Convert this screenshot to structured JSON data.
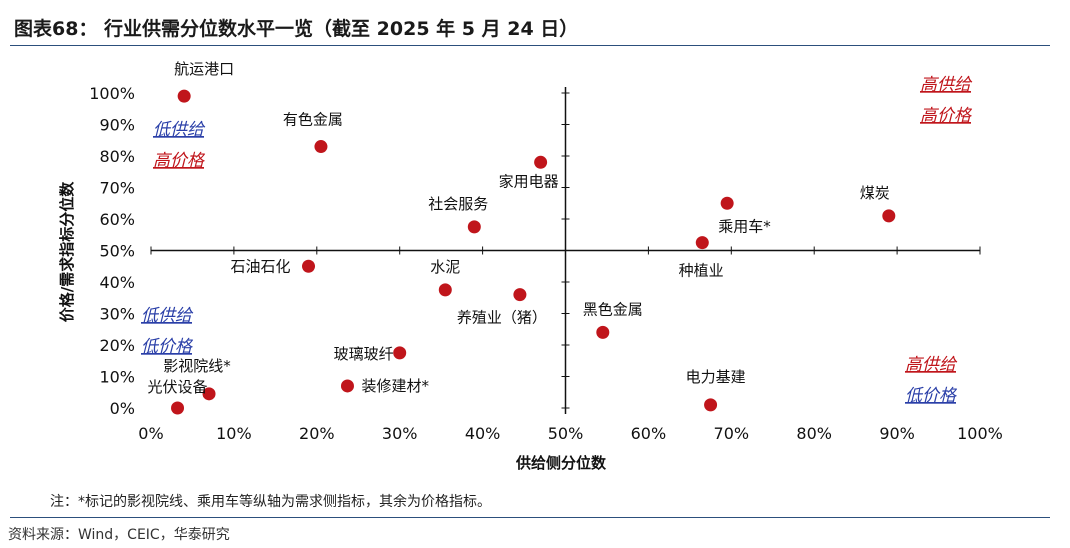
{
  "title": "图表68： 行业供需分位数水平一览（截至 2025 年 5 月 24 日）",
  "note": "注：*标记的影视院线、乘用车等纵轴为需求侧指标，其余为价格指标。",
  "source": "资料来源：Wind，CEIC，华泰研究",
  "colors": {
    "marker": "#c0151b",
    "red_text": "#c0151b",
    "blue_text": "#2a3fa8",
    "axis": "#111111",
    "rule": "#2c4f7c"
  },
  "quadrant_labels": [
    {
      "id": "top-left",
      "lines": [
        {
          "text": "低供给",
          "color": "blue"
        },
        {
          "text": "高价格",
          "color": "red"
        }
      ]
    },
    {
      "id": "top-right",
      "lines": [
        {
          "text": "高供给",
          "color": "red"
        },
        {
          "text": "高价格",
          "color": "red"
        }
      ]
    },
    {
      "id": "bottom-left",
      "lines": [
        {
          "text": "低供给",
          "color": "blue"
        },
        {
          "text": "低价格",
          "color": "blue"
        }
      ]
    },
    {
      "id": "bottom-right",
      "lines": [
        {
          "text": "高供给",
          "color": "red"
        },
        {
          "text": "低价格",
          "color": "blue"
        }
      ]
    }
  ],
  "chart_data": {
    "type": "scatter",
    "xlabel": "供给侧分位数",
    "ylabel": "价格/需求指标分位数",
    "xlim": [
      0,
      1
    ],
    "ylim": [
      0,
      1
    ],
    "x_ticks": [
      "0%",
      "10%",
      "20%",
      "30%",
      "40%",
      "50%",
      "60%",
      "70%",
      "80%",
      "90%",
      "100%"
    ],
    "y_ticks": [
      "0%",
      "10%",
      "20%",
      "30%",
      "40%",
      "50%",
      "60%",
      "70%",
      "80%",
      "90%",
      "100%"
    ],
    "crosshair": {
      "x": 0.5,
      "y": 0.5
    },
    "grid": false,
    "points": [
      {
        "label": "航运港口",
        "x": 0.04,
        "y": 0.99
      },
      {
        "label": "有色金属",
        "x": 0.205,
        "y": 0.83
      },
      {
        "label": "家用电器",
        "x": 0.47,
        "y": 0.78
      },
      {
        "label": "社会服务",
        "x": 0.39,
        "y": 0.575
      },
      {
        "label": "乘用车*",
        "x": 0.665,
        "y": 0.525
      },
      {
        "label": "种植业",
        "x": 0.695,
        "y": 0.65
      },
      {
        "label": "煤炭",
        "x": 0.89,
        "y": 0.61
      },
      {
        "label": "石油石化",
        "x": 0.19,
        "y": 0.45
      },
      {
        "label": "水泥",
        "x": 0.355,
        "y": 0.375
      },
      {
        "label": "养殖业（猪）",
        "x": 0.445,
        "y": 0.36
      },
      {
        "label": "黑色金属",
        "x": 0.545,
        "y": 0.24
      },
      {
        "label": "玻璃玻纤",
        "x": 0.3,
        "y": 0.175
      },
      {
        "label": "影视院线*",
        "x": 0.07,
        "y": 0.045
      },
      {
        "label": "光伏设备",
        "x": 0.032,
        "y": 0.0
      },
      {
        "label": "装修建材*",
        "x": 0.237,
        "y": 0.07
      },
      {
        "label": "电力基建",
        "x": 0.675,
        "y": 0.01
      }
    ]
  }
}
